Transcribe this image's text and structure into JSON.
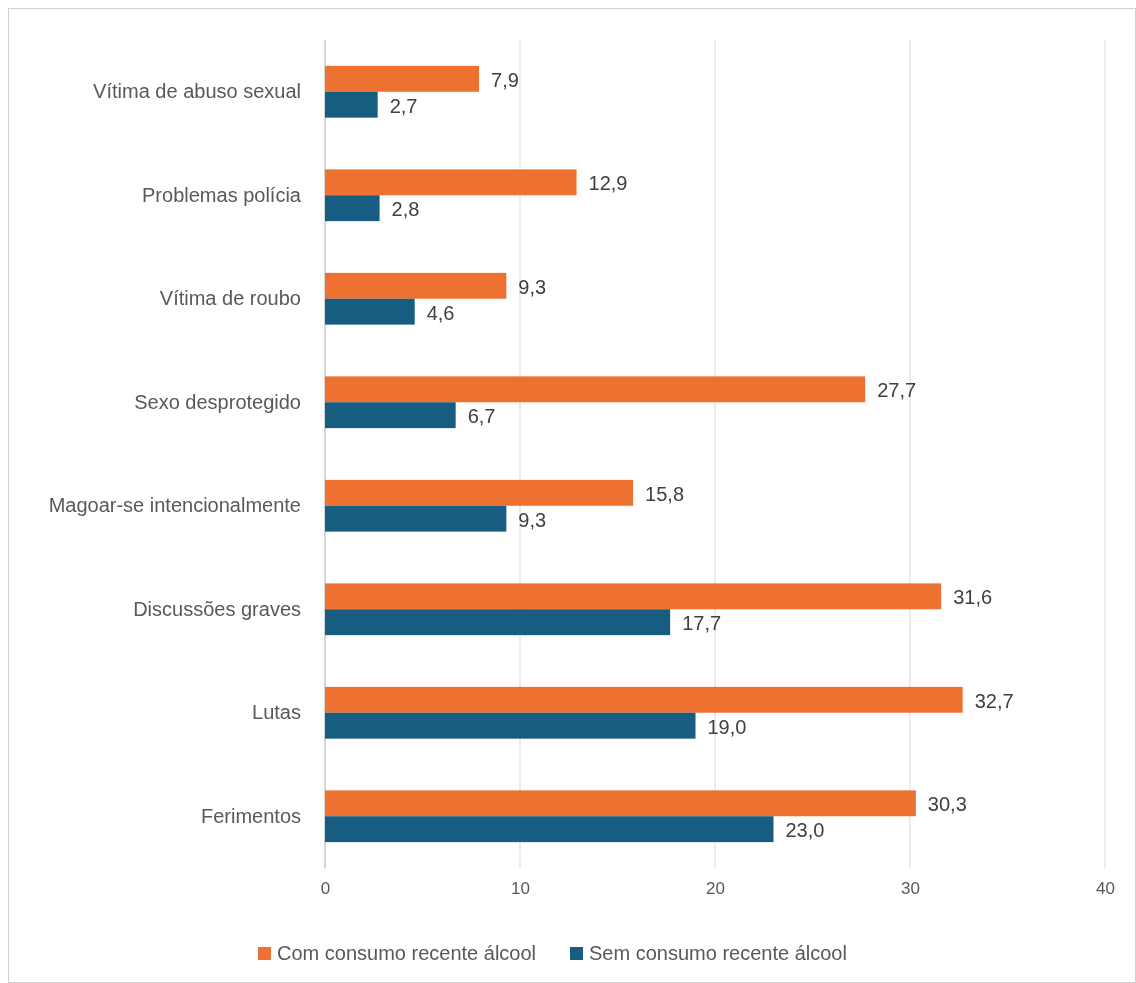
{
  "chart_data": {
    "type": "bar",
    "orientation": "horizontal",
    "categories": [
      "Vítima de abuso sexual",
      "Problemas polícia",
      "Vítima de roubo",
      "Sexo desprotegido",
      "Magoar-se intencionalmente",
      "Discussões graves",
      "Lutas",
      "Ferimentos"
    ],
    "series": [
      {
        "name": "Com consumo recente álcool",
        "color": "#ed7232",
        "values": [
          7.9,
          12.9,
          9.3,
          27.7,
          15.8,
          31.6,
          32.7,
          30.3
        ],
        "value_labels": [
          "7,9",
          "12,9",
          "9,3",
          "27,7",
          "15,8",
          "31,6",
          "32,7",
          "30,3"
        ]
      },
      {
        "name": "Sem consumo recente álcool",
        "color": "#175d82",
        "values": [
          2.7,
          2.8,
          4.6,
          6.7,
          9.3,
          17.7,
          19.0,
          23.0
        ],
        "value_labels": [
          "2,7",
          "2,8",
          "4,6",
          "6,7",
          "9,3",
          "17,7",
          "19,0",
          "23,0"
        ]
      }
    ],
    "xlim": [
      0,
      40
    ],
    "xticks": [
      0,
      10,
      20,
      30,
      40
    ],
    "grid": "x",
    "legend": "bottom"
  }
}
